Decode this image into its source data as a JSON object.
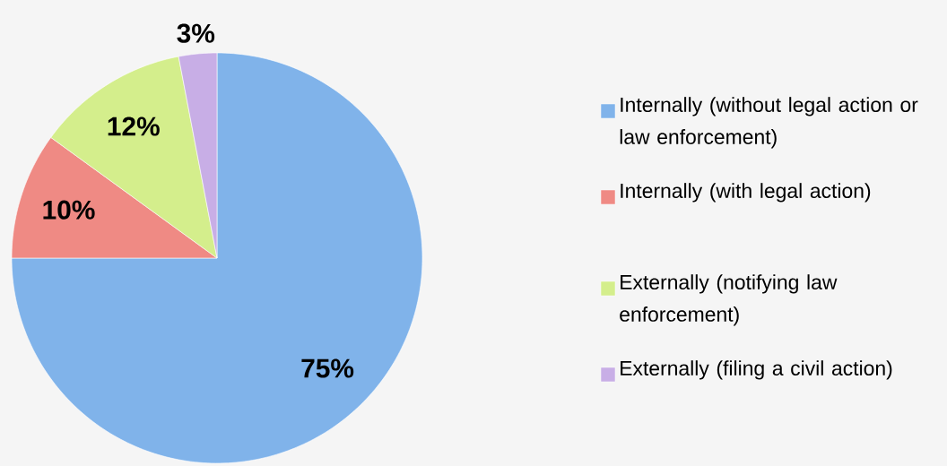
{
  "chart_data": {
    "type": "pie",
    "categories": [
      "Internally (without legal action or law enforcement)",
      "Internally (with legal action)",
      "Externally (notifying law enforcement)",
      "Externally (filing a civil action)"
    ],
    "values": [
      75,
      10,
      12,
      3
    ],
    "colors": [
      "#80b3ea",
      "#ef8a84",
      "#d4ee8c",
      "#c8aee6"
    ],
    "value_labels": [
      "75%",
      "10%",
      "12%",
      "3%"
    ],
    "legend": "right"
  }
}
